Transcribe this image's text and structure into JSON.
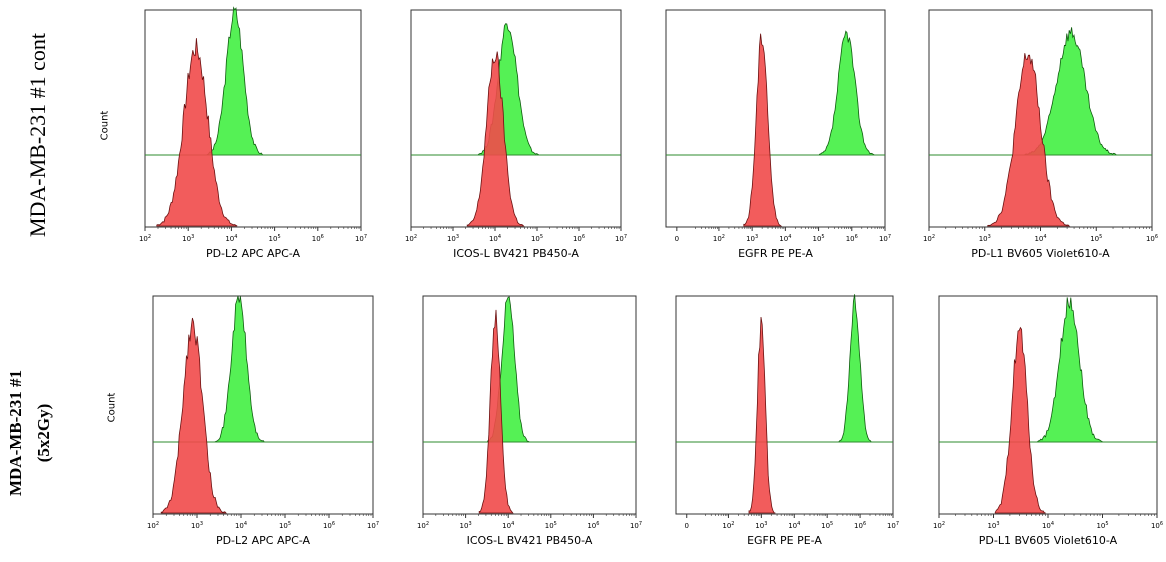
{
  "row_labels": {
    "row1": "MDA-MB-231 #1 cont",
    "row2_line1": "MDA-MB-231 #1",
    "row2_line2": "(5x2Gy)"
  },
  "count_label": "Count",
  "colors": {
    "red_fill": "#f14a4a",
    "green_fill": "#43f043",
    "red_line": "#6b1010",
    "green_line": "#0e5c0e",
    "baseline": "#2e8b2e",
    "frame": "#333333"
  },
  "chart_data": [
    {
      "type": "area",
      "row": 1,
      "col": 1,
      "xlabel": "PD-L2 APC APC-A",
      "ylabel": "Count",
      "xscale": "log",
      "xlim": [
        100,
        10000000
      ],
      "x_tick_labels": [
        "10^2",
        "10^3",
        "10^4",
        "10^5",
        "10^6",
        "10^7"
      ],
      "series": [
        {
          "color": "red",
          "peak_x": 1500,
          "width_decades": 0.28,
          "rel_height": 0.83
        },
        {
          "color": "green",
          "peak_x": 12000,
          "width_decades": 0.2,
          "rel_height": 1.0
        }
      ]
    },
    {
      "type": "area",
      "row": 1,
      "col": 2,
      "xlabel": "ICOS-L BV421 PB450-A",
      "ylabel": "Count",
      "xscale": "log",
      "xlim": [
        100,
        10000000
      ],
      "x_tick_labels": [
        "10^2",
        "10^3",
        "10^4",
        "10^5",
        "10^6",
        "10^7"
      ],
      "series": [
        {
          "color": "red",
          "peak_x": 10000,
          "width_decades": 0.2,
          "rel_height": 0.8
        },
        {
          "color": "green",
          "peak_x": 20000,
          "width_decades": 0.22,
          "rel_height": 0.93
        }
      ]
    },
    {
      "type": "area",
      "row": 1,
      "col": 3,
      "xlabel": "EGFR PE PE-A",
      "ylabel": "Count",
      "xscale": "biexponential",
      "xlim": [
        -100,
        10000000
      ],
      "x_tick_labels": [
        "0",
        "10^2",
        "10^3",
        "10^4",
        "10^5",
        "10^6",
        "10^7"
      ],
      "series": [
        {
          "color": "red",
          "peak_x": 2000,
          "width_decades": 0.17,
          "rel_height": 0.89
        },
        {
          "color": "green",
          "peak_x": 700000,
          "width_decades": 0.25,
          "rel_height": 0.85
        }
      ]
    },
    {
      "type": "area",
      "row": 1,
      "col": 4,
      "xlabel": "PD-L1 BV605 Violet610-A",
      "ylabel": "Count",
      "xscale": "log",
      "xlim": [
        100,
        1000000
      ],
      "x_tick_labels": [
        "10^2",
        "10^3",
        "10^4",
        "10^5",
        "10^6"
      ],
      "series": [
        {
          "color": "red",
          "peak_x": 6000,
          "width_decades": 0.22,
          "rel_height": 0.8
        },
        {
          "color": "green",
          "peak_x": 35000,
          "width_decades": 0.25,
          "rel_height": 0.86
        }
      ]
    },
    {
      "type": "area",
      "row": 2,
      "col": 1,
      "xlabel": "PD-L2 APC APC-A",
      "ylabel": "Count",
      "xscale": "log",
      "xlim": [
        100,
        10000000
      ],
      "x_tick_labels": [
        "10^2",
        "10^3",
        "10^4",
        "10^5",
        "10^6",
        "10^7"
      ],
      "series": [
        {
          "color": "red",
          "peak_x": 800,
          "width_decades": 0.22,
          "rel_height": 0.88
        },
        {
          "color": "green",
          "peak_x": 9000,
          "width_decades": 0.17,
          "rel_height": 1.0
        }
      ]
    },
    {
      "type": "area",
      "row": 2,
      "col": 2,
      "xlabel": "ICOS-L BV421 PB450-A",
      "ylabel": "Count",
      "xscale": "log",
      "xlim": [
        100,
        10000000
      ],
      "x_tick_labels": [
        "10^2",
        "10^3",
        "10^4",
        "10^5",
        "10^6",
        "10^7"
      ],
      "series": [
        {
          "color": "red",
          "peak_x": 5000,
          "width_decades": 0.12,
          "rel_height": 0.9
        },
        {
          "color": "green",
          "peak_x": 10000,
          "width_decades": 0.15,
          "rel_height": 1.0
        }
      ]
    },
    {
      "type": "area",
      "row": 2,
      "col": 3,
      "xlabel": "EGFR PE PE-A",
      "ylabel": "Count",
      "xscale": "biexponential",
      "xlim": [
        -100,
        10000000
      ],
      "x_tick_labels": [
        "0",
        "10^2",
        "10^3",
        "10^4",
        "10^5",
        "10^6",
        "10^7"
      ],
      "series": [
        {
          "color": "red",
          "peak_x": 1000,
          "width_decades": 0.12,
          "rel_height": 0.88
        },
        {
          "color": "green",
          "peak_x": 700000,
          "width_decades": 0.15,
          "rel_height": 0.98
        }
      ]
    },
    {
      "type": "area",
      "row": 2,
      "col": 4,
      "xlabel": "PD-L1 BV605 Violet610-A",
      "ylabel": "Count",
      "xscale": "log",
      "xlim": [
        100,
        1000000
      ],
      "x_tick_labels": [
        "10^2",
        "10^3",
        "10^4",
        "10^5",
        "10^6"
      ],
      "series": [
        {
          "color": "red",
          "peak_x": 3000,
          "width_decades": 0.14,
          "rel_height": 0.85
        },
        {
          "color": "green",
          "peak_x": 25000,
          "width_decades": 0.18,
          "rel_height": 0.98
        }
      ]
    }
  ]
}
